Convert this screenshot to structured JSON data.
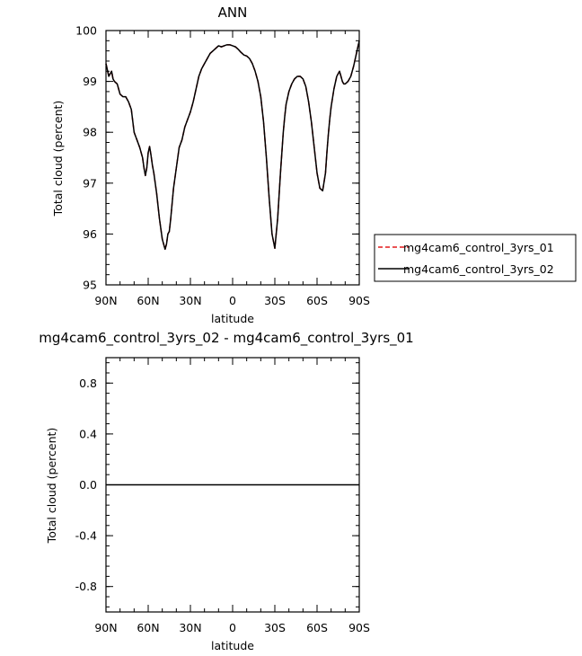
{
  "chart_data": [
    {
      "type": "line",
      "title": "ANN",
      "xlabel": "latitude",
      "ylabel": "Total cloud (percent)",
      "x_tick_labels": [
        "90N",
        "60N",
        "30N",
        "0",
        "30S",
        "60S",
        "90S"
      ],
      "x_tick_values": [
        90,
        60,
        30,
        0,
        -30,
        -60,
        -90
      ],
      "xlim": [
        90,
        -90
      ],
      "ylim": [
        95,
        100
      ],
      "y_tick_labels": [
        "95",
        "96",
        "97",
        "98",
        "99",
        "100"
      ],
      "y_tick_values": [
        95,
        96,
        97,
        98,
        99,
        100
      ],
      "grid": false,
      "legend_position": "right",
      "series": [
        {
          "name": "mg4cam6_control_3yrs_01",
          "color": "#e31a1c",
          "dash": "dashed",
          "x": [
            90,
            88,
            86,
            85,
            84,
            82,
            80,
            78,
            76,
            74,
            72,
            70,
            68,
            66,
            64,
            63,
            62,
            61,
            60,
            59,
            58,
            57,
            56,
            54,
            52,
            50,
            48,
            47,
            46,
            45,
            44,
            43,
            42,
            40,
            38,
            36,
            34,
            32,
            30,
            28,
            26,
            24,
            22,
            20,
            18,
            16,
            14,
            12,
            10,
            8,
            6,
            4,
            2,
            0,
            -2,
            -4,
            -6,
            -8,
            -10,
            -12,
            -14,
            -16,
            -18,
            -20,
            -22,
            -24,
            -26,
            -28,
            -30,
            -32,
            -34,
            -35,
            -36,
            -37,
            -38,
            -40,
            -42,
            -44,
            -46,
            -48,
            -50,
            -52,
            -54,
            -56,
            -58,
            -60,
            -62,
            -64,
            -66,
            -67,
            -68,
            -69,
            -70,
            -72,
            -74,
            -76,
            -77,
            -78,
            -79,
            -80,
            -82,
            -84,
            -86,
            -88,
            -90
          ],
          "y": [
            99.35,
            99.1,
            99.2,
            99.05,
            99.0,
            98.95,
            98.75,
            98.7,
            98.7,
            98.6,
            98.45,
            98.0,
            97.85,
            97.7,
            97.5,
            97.3,
            97.15,
            97.3,
            97.6,
            97.72,
            97.55,
            97.35,
            97.2,
            96.8,
            96.3,
            95.9,
            95.7,
            95.8,
            96.0,
            96.05,
            96.3,
            96.6,
            96.9,
            97.3,
            97.7,
            97.85,
            98.1,
            98.25,
            98.4,
            98.6,
            98.85,
            99.1,
            99.25,
            99.35,
            99.45,
            99.55,
            99.6,
            99.65,
            99.7,
            99.68,
            99.7,
            99.72,
            99.72,
            99.7,
            99.68,
            99.63,
            99.57,
            99.52,
            99.5,
            99.45,
            99.35,
            99.2,
            99.0,
            98.7,
            98.2,
            97.5,
            96.7,
            96.0,
            95.72,
            96.3,
            97.2,
            97.6,
            98.0,
            98.3,
            98.55,
            98.8,
            98.95,
            99.05,
            99.1,
            99.1,
            99.05,
            98.9,
            98.6,
            98.2,
            97.7,
            97.2,
            96.9,
            96.85,
            97.2,
            97.6,
            97.95,
            98.25,
            98.5,
            98.85,
            99.1,
            99.2,
            99.1,
            99.0,
            98.95,
            98.95,
            99.0,
            99.1,
            99.3,
            99.55,
            99.8
          ]
        },
        {
          "name": "mg4cam6_control_3yrs_02",
          "color": "#000000",
          "dash": "solid",
          "x": [
            90,
            88,
            86,
            85,
            84,
            82,
            80,
            78,
            76,
            74,
            72,
            70,
            68,
            66,
            64,
            63,
            62,
            61,
            60,
            59,
            58,
            57,
            56,
            54,
            52,
            50,
            48,
            47,
            46,
            45,
            44,
            43,
            42,
            40,
            38,
            36,
            34,
            32,
            30,
            28,
            26,
            24,
            22,
            20,
            18,
            16,
            14,
            12,
            10,
            8,
            6,
            4,
            2,
            0,
            -2,
            -4,
            -6,
            -8,
            -10,
            -12,
            -14,
            -16,
            -18,
            -20,
            -22,
            -24,
            -26,
            -28,
            -30,
            -32,
            -34,
            -35,
            -36,
            -37,
            -38,
            -40,
            -42,
            -44,
            -46,
            -48,
            -50,
            -52,
            -54,
            -56,
            -58,
            -60,
            -62,
            -64,
            -66,
            -67,
            -68,
            -69,
            -70,
            -72,
            -74,
            -76,
            -77,
            -78,
            -79,
            -80,
            -82,
            -84,
            -86,
            -88,
            -90
          ],
          "y": [
            99.35,
            99.1,
            99.2,
            99.05,
            99.0,
            98.95,
            98.75,
            98.7,
            98.7,
            98.6,
            98.45,
            98.0,
            97.85,
            97.7,
            97.5,
            97.3,
            97.15,
            97.3,
            97.6,
            97.72,
            97.55,
            97.35,
            97.2,
            96.8,
            96.3,
            95.9,
            95.7,
            95.8,
            96.0,
            96.05,
            96.3,
            96.6,
            96.9,
            97.3,
            97.7,
            97.85,
            98.1,
            98.25,
            98.4,
            98.6,
            98.85,
            99.1,
            99.25,
            99.35,
            99.45,
            99.55,
            99.6,
            99.65,
            99.7,
            99.68,
            99.7,
            99.72,
            99.72,
            99.7,
            99.68,
            99.63,
            99.57,
            99.52,
            99.5,
            99.45,
            99.35,
            99.2,
            99.0,
            98.7,
            98.2,
            97.5,
            96.7,
            96.0,
            95.72,
            96.3,
            97.2,
            97.6,
            98.0,
            98.3,
            98.55,
            98.8,
            98.95,
            99.05,
            99.1,
            99.1,
            99.05,
            98.9,
            98.6,
            98.2,
            97.7,
            97.2,
            96.9,
            96.85,
            97.2,
            97.6,
            97.95,
            98.25,
            98.5,
            98.85,
            99.1,
            99.2,
            99.1,
            99.0,
            98.95,
            98.95,
            99.0,
            99.1,
            99.3,
            99.55,
            99.8
          ]
        }
      ]
    },
    {
      "type": "line",
      "title": "mg4cam6_control_3yrs_02 - mg4cam6_control_3yrs_01",
      "xlabel": "latitude",
      "ylabel": "Total cloud (percent)",
      "x_tick_labels": [
        "90N",
        "60N",
        "30N",
        "0",
        "30S",
        "60S",
        "90S"
      ],
      "x_tick_values": [
        90,
        60,
        30,
        0,
        -30,
        -60,
        -90
      ],
      "xlim": [
        90,
        -90
      ],
      "ylim": [
        -1,
        1
      ],
      "y_tick_labels": [
        "-0.8",
        "-0.4",
        "0.0",
        "0.4",
        "0.8"
      ],
      "y_tick_values": [
        -0.8,
        -0.4,
        0.0,
        0.4,
        0.8
      ],
      "grid": false,
      "series": [
        {
          "color": "#000000",
          "x": [
            90,
            -90
          ],
          "y": [
            0,
            0
          ]
        }
      ]
    }
  ]
}
